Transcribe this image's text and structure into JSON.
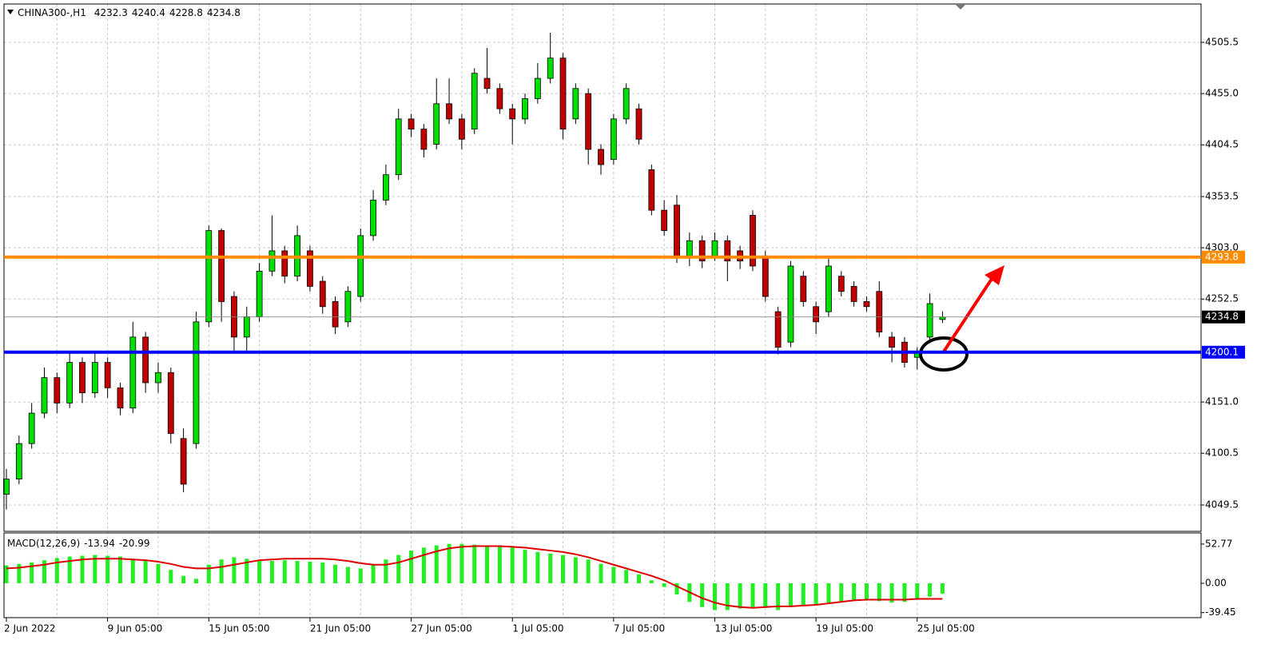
{
  "chart_data": [
    {
      "type": "candlestick",
      "title": "CHINA300-,H1",
      "categories": [
        "2 Jun 2022",
        null,
        null,
        null,
        null,
        null,
        null,
        null,
        "9 Jun 05:00",
        null,
        null,
        null,
        null,
        null,
        null,
        null,
        "15 Jun 05:00",
        null,
        null,
        null,
        null,
        null,
        null,
        null,
        "21 Jun 05:00",
        null,
        null,
        null,
        null,
        null,
        null,
        null,
        "27 Jun 05:00",
        null,
        null,
        null,
        null,
        null,
        null,
        null,
        "1 Jul 05:00",
        null,
        null,
        null,
        null,
        null,
        null,
        null,
        "7 Jul 05:00",
        null,
        null,
        null,
        null,
        null,
        null,
        null,
        "13 Jul 05:00",
        null,
        null,
        null,
        null,
        null,
        null,
        null,
        "19 Jul 05:00",
        null,
        null,
        null,
        null,
        null,
        null,
        null,
        "25 Jul 05:00",
        null,
        null
      ],
      "open": [
        4060,
        4075,
        4110,
        4140,
        4175,
        4150,
        4190,
        4160,
        4190,
        4165,
        4145,
        4215,
        4170,
        4180,
        4115,
        4110,
        4230,
        4320,
        4255,
        4215,
        4235,
        4280,
        4300,
        4275,
        4300,
        4270,
        4250,
        4230,
        4255,
        4315,
        4350,
        4375,
        4430,
        4420,
        4405,
        4445,
        4430,
        4420,
        4470,
        4460,
        4440,
        4430,
        4450,
        4470,
        4490,
        4430,
        4455,
        4400,
        4390,
        4430,
        4440,
        4380,
        4340,
        4345,
        4295,
        4310,
        4295,
        4310,
        4300,
        4335,
        4295,
        4240,
        4210,
        4275,
        4245,
        4240,
        4275,
        4265,
        4250,
        4260,
        4215,
        4210,
        4195,
        4215,
        4232.3
      ],
      "high": [
        4085,
        4118,
        4150,
        4185,
        4180,
        4200,
        4195,
        4200,
        4195,
        4170,
        4230,
        4220,
        4190,
        4185,
        4125,
        4240,
        4325,
        4322,
        4260,
        4245,
        4288,
        4335,
        4305,
        4325,
        4305,
        4275,
        4255,
        4265,
        4322,
        4360,
        4385,
        4440,
        4435,
        4425,
        4470,
        4470,
        4435,
        4480,
        4500,
        4465,
        4445,
        4455,
        4485,
        4515,
        4495,
        4465,
        4460,
        4405,
        4435,
        4465,
        4445,
        4385,
        4350,
        4355,
        4318,
        4315,
        4318,
        4315,
        4305,
        4340,
        4300,
        4245,
        4290,
        4280,
        4250,
        4295,
        4280,
        4270,
        4255,
        4270,
        4220,
        4215,
        4205,
        4258,
        4240.4
      ],
      "low": [
        4045,
        4070,
        4105,
        4135,
        4140,
        4145,
        4150,
        4155,
        4155,
        4138,
        4140,
        4160,
        4160,
        4110,
        4062,
        4105,
        4225,
        4230,
        4200,
        4200,
        4230,
        4275,
        4268,
        4270,
        4260,
        4238,
        4218,
        4225,
        4250,
        4310,
        4345,
        4370,
        4412,
        4392,
        4400,
        4425,
        4400,
        4415,
        4455,
        4435,
        4405,
        4425,
        4445,
        4465,
        4410,
        4425,
        4385,
        4375,
        4385,
        4425,
        4405,
        4335,
        4315,
        4288,
        4285,
        4283,
        4290,
        4270,
        4282,
        4280,
        4250,
        4198,
        4205,
        4245,
        4218,
        4235,
        4255,
        4245,
        4240,
        4215,
        4190,
        4185,
        4183,
        4210,
        4228.8
      ],
      "close": [
        4075,
        4110,
        4140,
        4175,
        4150,
        4190,
        4160,
        4190,
        4165,
        4145,
        4215,
        4170,
        4180,
        4120,
        4070,
        4230,
        4320,
        4250,
        4215,
        4235,
        4280,
        4300,
        4275,
        4315,
        4265,
        4245,
        4225,
        4260,
        4315,
        4350,
        4375,
        4430,
        4420,
        4400,
        4445,
        4430,
        4410,
        4475,
        4460,
        4440,
        4430,
        4450,
        4470,
        4490,
        4420,
        4460,
        4400,
        4385,
        4430,
        4460,
        4410,
        4340,
        4320,
        4295,
        4310,
        4290,
        4310,
        4290,
        4290,
        4285,
        4255,
        4205,
        4285,
        4250,
        4230,
        4285,
        4260,
        4250,
        4245,
        4220,
        4205,
        4190,
        4200,
        4248,
        4234.8
      ],
      "up_color": "#00e000",
      "down_color": "#c00000",
      "ylim": [
        4023.5,
        4543.3
      ],
      "yticks": [
        4505.5,
        {
          "value": 4455,
          "label": "4455.0"
        },
        4404.5,
        4353.5,
        {
          "value": 4303,
          "label": "4303.0"
        },
        4252.5,
        {
          "value": 4151,
          "label": "4151.0"
        },
        4100.5,
        4049.5
      ],
      "levels": [
        {
          "value": 4293.8,
          "color": "#ff8c00"
        },
        {
          "value": 4200.1,
          "color": "#0000ff"
        }
      ],
      "grid": true
    },
    {
      "type": "macd",
      "title": "MACD(12,26,9)",
      "series": [
        {
          "kind": "histogram",
          "color": "#22ee22",
          "values": [
            24,
            26,
            28,
            31,
            34,
            36,
            37,
            38,
            37,
            36,
            33,
            30,
            26,
            18,
            10,
            6,
            25,
            32,
            35,
            33,
            30,
            30,
            31,
            30,
            29,
            28,
            25,
            22,
            20,
            25,
            32,
            38,
            44,
            48,
            51,
            53,
            53,
            52,
            51,
            50,
            48,
            45,
            42,
            40,
            38,
            35,
            32,
            26,
            22,
            18,
            12,
            4,
            -5,
            -15,
            -25,
            -32,
            -36,
            -36,
            -34,
            -32,
            -33,
            -36,
            -32,
            -30,
            -28,
            -26,
            -24,
            -22,
            -22,
            -24,
            -26,
            -25,
            -22,
            -18,
            -13.94
          ]
        },
        {
          "kind": "line",
          "color": "#dd0000",
          "values": [
            20,
            21,
            23,
            25,
            28,
            30,
            32,
            33,
            33,
            33,
            32,
            31,
            29,
            26,
            22,
            20,
            20,
            22,
            25,
            28,
            31,
            32,
            33,
            33,
            33,
            33,
            32,
            30,
            27,
            25,
            25,
            28,
            33,
            38,
            43,
            47,
            49,
            50,
            50,
            50,
            49,
            48,
            46,
            44,
            42,
            39,
            35,
            30,
            25,
            20,
            15,
            10,
            4,
            -4,
            -12,
            -20,
            -26,
            -30,
            -32,
            -33,
            -32,
            -31,
            -31,
            -30,
            -29,
            -27,
            -25,
            -23,
            -22,
            -22,
            -22,
            -22,
            -21,
            -21,
            -20.99
          ]
        }
      ],
      "ylim": [
        -46.2,
        67.7
      ],
      "yticks": [
        52.77,
        {
          "value": 0,
          "label": "0.00"
        },
        -39.45
      ]
    }
  ]
}
